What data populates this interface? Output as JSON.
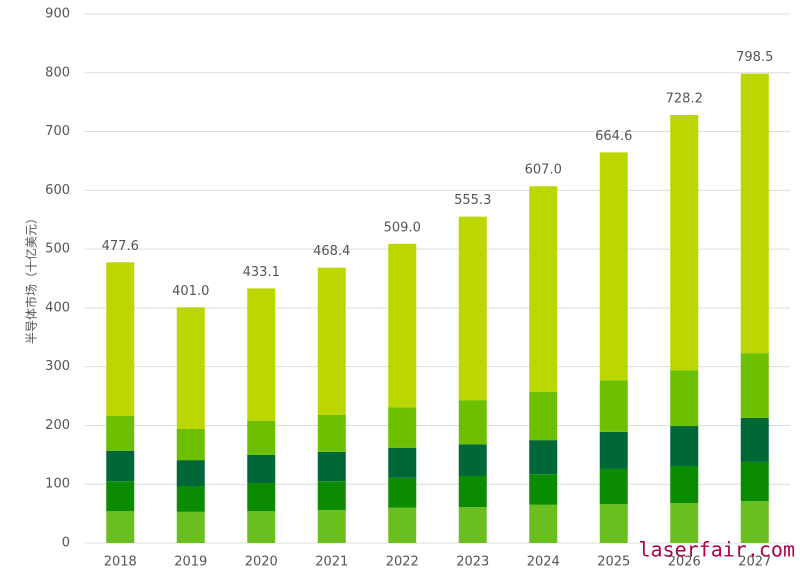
{
  "chart_data": {
    "type": "stacked_bar",
    "ylabel": "半导体市场（十亿美元）",
    "categories": [
      "2018",
      "2019",
      "2020",
      "2021",
      "2022",
      "2023",
      "2024",
      "2025",
      "2026",
      "2027"
    ],
    "series": [
      {
        "color": "#6abf1e",
        "values": [
          54,
          53,
          54,
          56,
          60,
          61,
          65,
          66,
          68,
          71
        ]
      },
      {
        "color": "#0b8c00",
        "values": [
          51,
          44,
          48,
          49,
          51,
          53,
          52,
          60,
          63,
          67
        ]
      },
      {
        "color": "#006837",
        "values": [
          52,
          44,
          48,
          50,
          51,
          54,
          58,
          63,
          68,
          75
        ]
      },
      {
        "color": "#6cc000",
        "values": [
          59,
          53,
          58,
          63,
          69,
          75,
          82,
          88,
          95,
          110
        ]
      },
      {
        "color": "#bcd700",
        "values": [
          261.6,
          207,
          225.1,
          250.4,
          278,
          312.3,
          350,
          387.6,
          434.2,
          475.5
        ]
      }
    ],
    "totals": [
      477.6,
      401.0,
      433.1,
      468.4,
      509.0,
      555.3,
      607.0,
      664.6,
      728.2,
      798.5
    ],
    "total_labels": [
      "477.6",
      "401.0",
      "433.1",
      "468.4",
      "509.0",
      "555.3",
      "607.0",
      "664.6",
      "728.2",
      "798.5"
    ],
    "ylim": [
      0,
      900
    ],
    "yticks": [
      0,
      100,
      200,
      300,
      400,
      500,
      600,
      700,
      800,
      900
    ],
    "grid": true,
    "watermark": "laserfair.com"
  }
}
